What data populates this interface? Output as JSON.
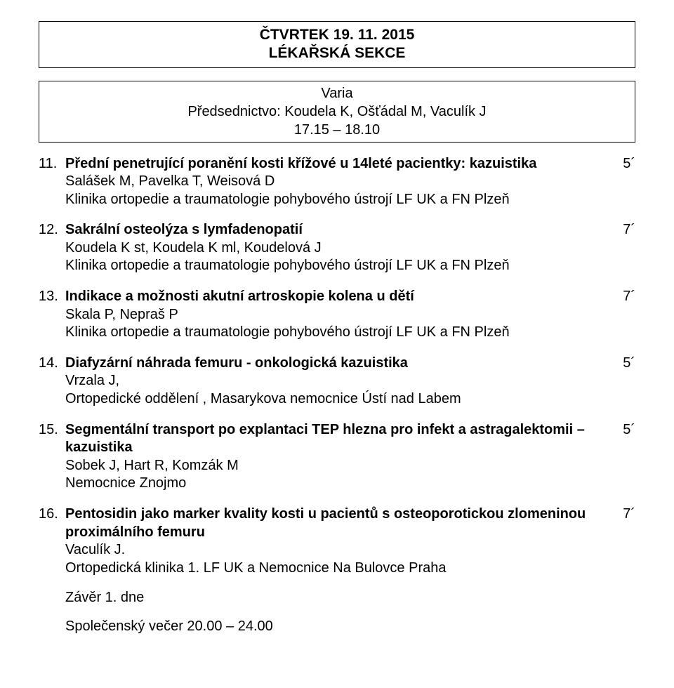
{
  "header": {
    "line1": "ČTVRTEK 19. 11. 2015",
    "line2": "LÉKAŘSKÁ SEKCE"
  },
  "session": {
    "title": "Varia",
    "chair_label": "Předsednictvo: Koudela K, Ošťádal M, Vaculík J",
    "time": "17.15 – 18.10"
  },
  "entries": [
    {
      "num": "11.",
      "title": "Přední penetrující poranění kosti křížové u 14leté pacientky: kazuistika",
      "duration": "5´",
      "authors": "Salášek M, Pavelka T, Weisová D",
      "affil": "Klinika ortopedie a traumatologie pohybového ústrojí LF UK a FN Plzeň"
    },
    {
      "num": "12.",
      "title": "Sakrální osteolýza s lymfadenopatií",
      "duration": "7´",
      "authors": "Koudela K st, Koudela K ml, Koudelová J",
      "affil": "Klinika ortopedie a traumatologie pohybového ústrojí LF UK a FN Plzeň"
    },
    {
      "num": "13.",
      "title": "Indikace a možnosti akutní artroskopie kolena u dětí",
      "duration": "7´",
      "authors": "Skala P, Nepraš P",
      "affil": "Klinika ortopedie a traumatologie pohybového ústrojí LF UK a FN Plzeň"
    },
    {
      "num": "14.",
      "title": "Diafyzární náhrada femuru - onkologická kazuistika",
      "duration": "5´",
      "authors": "Vrzala J,",
      "affil": "Ortopedické oddělení , Masarykova nemocnice Ústí nad Labem"
    },
    {
      "num": "15.",
      "title": "Segmentální transport po explantaci TEP hlezna pro infekt a astragalektomii – kazuistika",
      "duration": "5´",
      "authors": "Sobek J, Hart R, Komzák M",
      "affil": "Nemocnice Znojmo"
    },
    {
      "num": "16.",
      "title": "Pentosidin jako marker kvality kosti u pacientů s osteoporotickou zlomeninou",
      "title2": "proximálního femuru",
      "duration": "7´",
      "authors": "Vaculík J.",
      "affil": "Ortopedická klinika 1. LF UK a Nemocnice Na Bulovce Praha"
    }
  ],
  "closing": "Závěr 1. dne",
  "evening": "Společenský večer 20.00 – 24.00"
}
